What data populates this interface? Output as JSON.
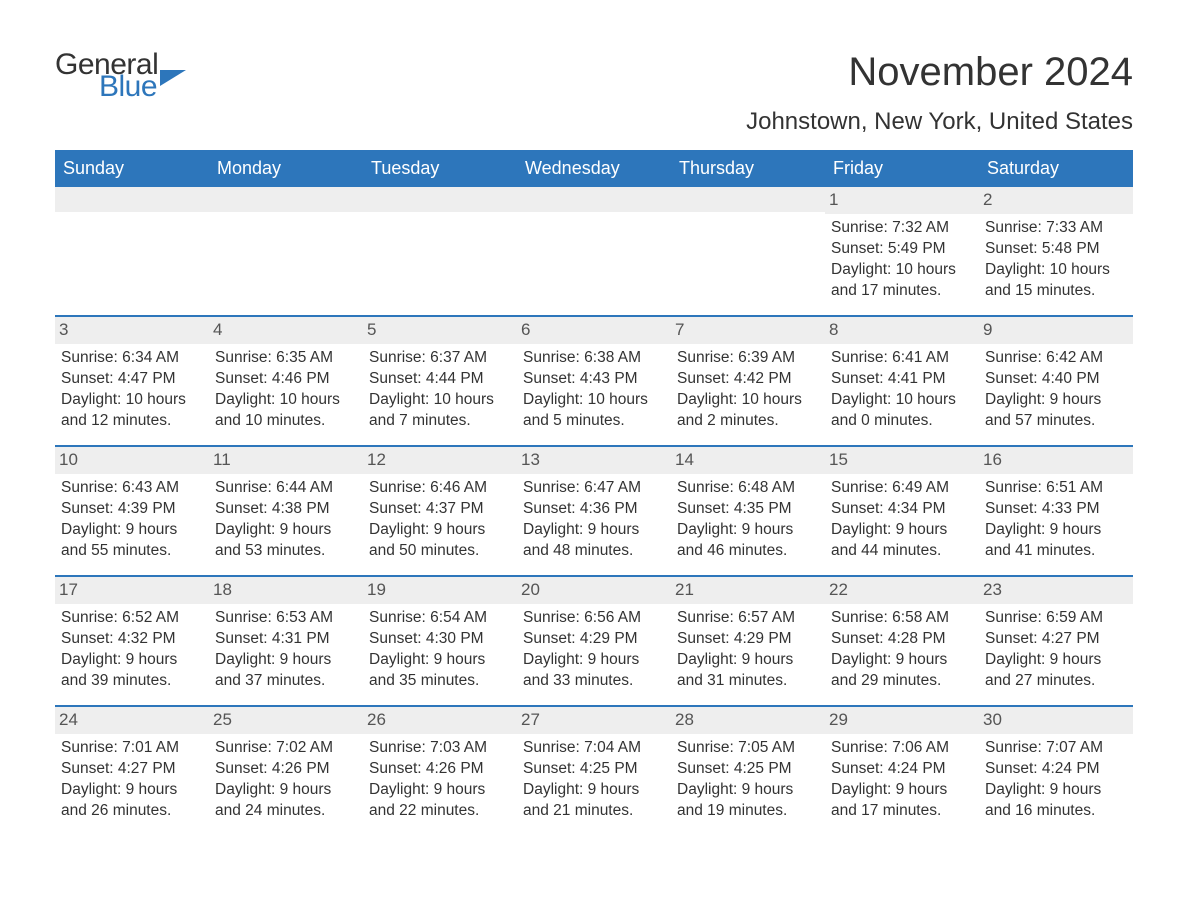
{
  "logo": {
    "general": "General",
    "blue": "Blue"
  },
  "title": "November 2024",
  "subtitle": "Johnstown, New York, United States",
  "colors": {
    "header_bg": "#2d76bb",
    "header_text": "#ffffff",
    "day_number_bg": "#eeeeee",
    "text": "#333333",
    "border": "#2d76bb",
    "background": "#ffffff"
  },
  "calendar": {
    "type": "table",
    "day_headers": [
      "Sunday",
      "Monday",
      "Tuesday",
      "Wednesday",
      "Thursday",
      "Friday",
      "Saturday"
    ],
    "weeks": [
      [
        null,
        null,
        null,
        null,
        null,
        {
          "n": "1",
          "sunrise": "Sunrise: 7:32 AM",
          "sunset": "Sunset: 5:49 PM",
          "daylight1": "Daylight: 10 hours",
          "daylight2": "and 17 minutes."
        },
        {
          "n": "2",
          "sunrise": "Sunrise: 7:33 AM",
          "sunset": "Sunset: 5:48 PM",
          "daylight1": "Daylight: 10 hours",
          "daylight2": "and 15 minutes."
        }
      ],
      [
        {
          "n": "3",
          "sunrise": "Sunrise: 6:34 AM",
          "sunset": "Sunset: 4:47 PM",
          "daylight1": "Daylight: 10 hours",
          "daylight2": "and 12 minutes."
        },
        {
          "n": "4",
          "sunrise": "Sunrise: 6:35 AM",
          "sunset": "Sunset: 4:46 PM",
          "daylight1": "Daylight: 10 hours",
          "daylight2": "and 10 minutes."
        },
        {
          "n": "5",
          "sunrise": "Sunrise: 6:37 AM",
          "sunset": "Sunset: 4:44 PM",
          "daylight1": "Daylight: 10 hours",
          "daylight2": "and 7 minutes."
        },
        {
          "n": "6",
          "sunrise": "Sunrise: 6:38 AM",
          "sunset": "Sunset: 4:43 PM",
          "daylight1": "Daylight: 10 hours",
          "daylight2": "and 5 minutes."
        },
        {
          "n": "7",
          "sunrise": "Sunrise: 6:39 AM",
          "sunset": "Sunset: 4:42 PM",
          "daylight1": "Daylight: 10 hours",
          "daylight2": "and 2 minutes."
        },
        {
          "n": "8",
          "sunrise": "Sunrise: 6:41 AM",
          "sunset": "Sunset: 4:41 PM",
          "daylight1": "Daylight: 10 hours",
          "daylight2": "and 0 minutes."
        },
        {
          "n": "9",
          "sunrise": "Sunrise: 6:42 AM",
          "sunset": "Sunset: 4:40 PM",
          "daylight1": "Daylight: 9 hours",
          "daylight2": "and 57 minutes."
        }
      ],
      [
        {
          "n": "10",
          "sunrise": "Sunrise: 6:43 AM",
          "sunset": "Sunset: 4:39 PM",
          "daylight1": "Daylight: 9 hours",
          "daylight2": "and 55 minutes."
        },
        {
          "n": "11",
          "sunrise": "Sunrise: 6:44 AM",
          "sunset": "Sunset: 4:38 PM",
          "daylight1": "Daylight: 9 hours",
          "daylight2": "and 53 minutes."
        },
        {
          "n": "12",
          "sunrise": "Sunrise: 6:46 AM",
          "sunset": "Sunset: 4:37 PM",
          "daylight1": "Daylight: 9 hours",
          "daylight2": "and 50 minutes."
        },
        {
          "n": "13",
          "sunrise": "Sunrise: 6:47 AM",
          "sunset": "Sunset: 4:36 PM",
          "daylight1": "Daylight: 9 hours",
          "daylight2": "and 48 minutes."
        },
        {
          "n": "14",
          "sunrise": "Sunrise: 6:48 AM",
          "sunset": "Sunset: 4:35 PM",
          "daylight1": "Daylight: 9 hours",
          "daylight2": "and 46 minutes."
        },
        {
          "n": "15",
          "sunrise": "Sunrise: 6:49 AM",
          "sunset": "Sunset: 4:34 PM",
          "daylight1": "Daylight: 9 hours",
          "daylight2": "and 44 minutes."
        },
        {
          "n": "16",
          "sunrise": "Sunrise: 6:51 AM",
          "sunset": "Sunset: 4:33 PM",
          "daylight1": "Daylight: 9 hours",
          "daylight2": "and 41 minutes."
        }
      ],
      [
        {
          "n": "17",
          "sunrise": "Sunrise: 6:52 AM",
          "sunset": "Sunset: 4:32 PM",
          "daylight1": "Daylight: 9 hours",
          "daylight2": "and 39 minutes."
        },
        {
          "n": "18",
          "sunrise": "Sunrise: 6:53 AM",
          "sunset": "Sunset: 4:31 PM",
          "daylight1": "Daylight: 9 hours",
          "daylight2": "and 37 minutes."
        },
        {
          "n": "19",
          "sunrise": "Sunrise: 6:54 AM",
          "sunset": "Sunset: 4:30 PM",
          "daylight1": "Daylight: 9 hours",
          "daylight2": "and 35 minutes."
        },
        {
          "n": "20",
          "sunrise": "Sunrise: 6:56 AM",
          "sunset": "Sunset: 4:29 PM",
          "daylight1": "Daylight: 9 hours",
          "daylight2": "and 33 minutes."
        },
        {
          "n": "21",
          "sunrise": "Sunrise: 6:57 AM",
          "sunset": "Sunset: 4:29 PM",
          "daylight1": "Daylight: 9 hours",
          "daylight2": "and 31 minutes."
        },
        {
          "n": "22",
          "sunrise": "Sunrise: 6:58 AM",
          "sunset": "Sunset: 4:28 PM",
          "daylight1": "Daylight: 9 hours",
          "daylight2": "and 29 minutes."
        },
        {
          "n": "23",
          "sunrise": "Sunrise: 6:59 AM",
          "sunset": "Sunset: 4:27 PM",
          "daylight1": "Daylight: 9 hours",
          "daylight2": "and 27 minutes."
        }
      ],
      [
        {
          "n": "24",
          "sunrise": "Sunrise: 7:01 AM",
          "sunset": "Sunset: 4:27 PM",
          "daylight1": "Daylight: 9 hours",
          "daylight2": "and 26 minutes."
        },
        {
          "n": "25",
          "sunrise": "Sunrise: 7:02 AM",
          "sunset": "Sunset: 4:26 PM",
          "daylight1": "Daylight: 9 hours",
          "daylight2": "and 24 minutes."
        },
        {
          "n": "26",
          "sunrise": "Sunrise: 7:03 AM",
          "sunset": "Sunset: 4:26 PM",
          "daylight1": "Daylight: 9 hours",
          "daylight2": "and 22 minutes."
        },
        {
          "n": "27",
          "sunrise": "Sunrise: 7:04 AM",
          "sunset": "Sunset: 4:25 PM",
          "daylight1": "Daylight: 9 hours",
          "daylight2": "and 21 minutes."
        },
        {
          "n": "28",
          "sunrise": "Sunrise: 7:05 AM",
          "sunset": "Sunset: 4:25 PM",
          "daylight1": "Daylight: 9 hours",
          "daylight2": "and 19 minutes."
        },
        {
          "n": "29",
          "sunrise": "Sunrise: 7:06 AM",
          "sunset": "Sunset: 4:24 PM",
          "daylight1": "Daylight: 9 hours",
          "daylight2": "and 17 minutes."
        },
        {
          "n": "30",
          "sunrise": "Sunrise: 7:07 AM",
          "sunset": "Sunset: 4:24 PM",
          "daylight1": "Daylight: 9 hours",
          "daylight2": "and 16 minutes."
        }
      ]
    ]
  }
}
